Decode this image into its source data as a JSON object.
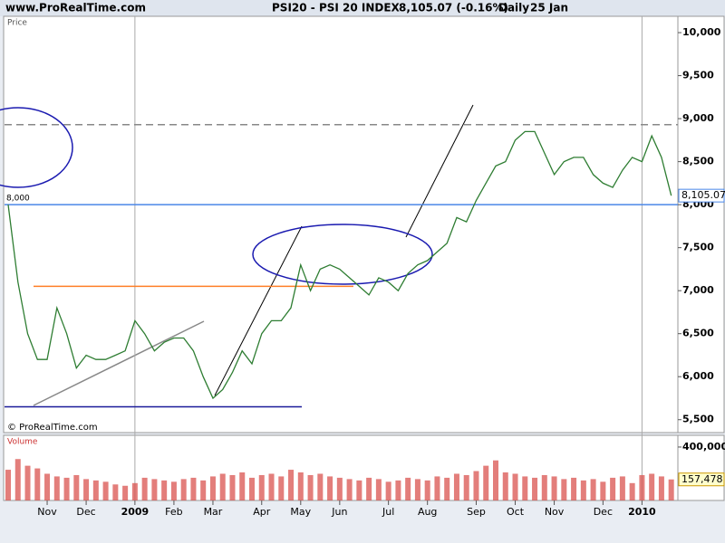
{
  "header": {
    "site": "www.ProRealTime.com",
    "instrument": "PSI20 - PSI 20 INDEX",
    "quote": "8,105.07 (-0.16%)",
    "period": "Daily",
    "date": "25 Jan",
    "copyright": "© ProRealTime.com"
  },
  "chart_data": [
    {
      "type": "line",
      "label": "Price",
      "color": "#2e7d32",
      "categories": [
        null,
        null,
        null,
        null,
        "Nov",
        null,
        null,
        null,
        "Dec",
        null,
        null,
        null,
        null,
        "2009",
        null,
        null,
        null,
        "Feb",
        null,
        null,
        null,
        "Mar",
        null,
        null,
        null,
        null,
        "Apr",
        null,
        null,
        null,
        "May",
        null,
        null,
        null,
        "Jun",
        null,
        null,
        null,
        null,
        "Jul",
        null,
        null,
        null,
        "Aug",
        null,
        null,
        null,
        null,
        "Sep",
        null,
        null,
        null,
        "Oct",
        null,
        null,
        null,
        "Nov",
        null,
        null,
        null,
        null,
        "Dec",
        null,
        null,
        null,
        "2010",
        null,
        null,
        null
      ],
      "values": [
        8000,
        7100,
        6500,
        6200,
        6200,
        6800,
        6500,
        6100,
        6250,
        6200,
        6200,
        6250,
        6300,
        6650,
        6500,
        6300,
        6400,
        6450,
        6450,
        6300,
        6000,
        5750,
        5850,
        6050,
        6300,
        6150,
        6500,
        6650,
        6650,
        6800,
        7300,
        7000,
        7250,
        7300,
        7250,
        7150,
        7050,
        6950,
        7150,
        7100,
        7000,
        7200,
        7300,
        7350,
        7450,
        7550,
        7850,
        7800,
        8050,
        8250,
        8450,
        8500,
        8750,
        8850,
        8850,
        8600,
        8350,
        8500,
        8550,
        8550,
        8350,
        8250,
        8200,
        8400,
        8550,
        8500,
        8800,
        8550,
        8105.07
      ],
      "last_value_label": "8,105.07",
      "ylim": [
        5350,
        10190
      ],
      "yticks": [
        {
          "value": 5500,
          "label": "5,500"
        },
        {
          "value": 6000,
          "label": "6,000"
        },
        {
          "value": 6500,
          "label": "6,500"
        },
        {
          "value": 7000,
          "label": "7,000"
        },
        {
          "value": 7500,
          "label": "7,500"
        },
        {
          "value": 8000,
          "label": "8,000"
        },
        {
          "value": 8500,
          "label": "8,500"
        },
        {
          "value": 9000,
          "label": "9,000"
        },
        {
          "value": 9500,
          "label": "9,500"
        },
        {
          "value": 10000,
          "label": "10,000"
        }
      ],
      "levels": [
        {
          "value": 8000,
          "color": "#4a86e8",
          "label": "8,000"
        },
        {
          "value": 7050,
          "color": "#ff7f27"
        },
        {
          "value": 8930,
          "color": "#888888",
          "dashed": true
        },
        {
          "value": 5650,
          "color": "#1a1a9a"
        }
      ]
    },
    {
      "type": "bar",
      "label": "Volume",
      "color": "#d9534f",
      "values": [
        230000,
        310000,
        260000,
        240000,
        200000,
        180000,
        170000,
        190000,
        160000,
        150000,
        140000,
        120000,
        110000,
        130000,
        170000,
        160000,
        150000,
        140000,
        160000,
        170000,
        150000,
        180000,
        200000,
        190000,
        210000,
        170000,
        190000,
        200000,
        180000,
        230000,
        210000,
        190000,
        200000,
        180000,
        170000,
        160000,
        150000,
        170000,
        160000,
        140000,
        150000,
        170000,
        160000,
        150000,
        180000,
        170000,
        200000,
        190000,
        220000,
        260000,
        300000,
        210000,
        200000,
        180000,
        170000,
        190000,
        180000,
        160000,
        170000,
        150000,
        160000,
        140000,
        170000,
        180000,
        130000,
        190000,
        200000,
        180000,
        157478
      ],
      "last_value_label": "157,478",
      "ylim": [
        0,
        481000
      ],
      "yticks": [
        {
          "value": 400000,
          "label": "400,000"
        }
      ]
    }
  ]
}
